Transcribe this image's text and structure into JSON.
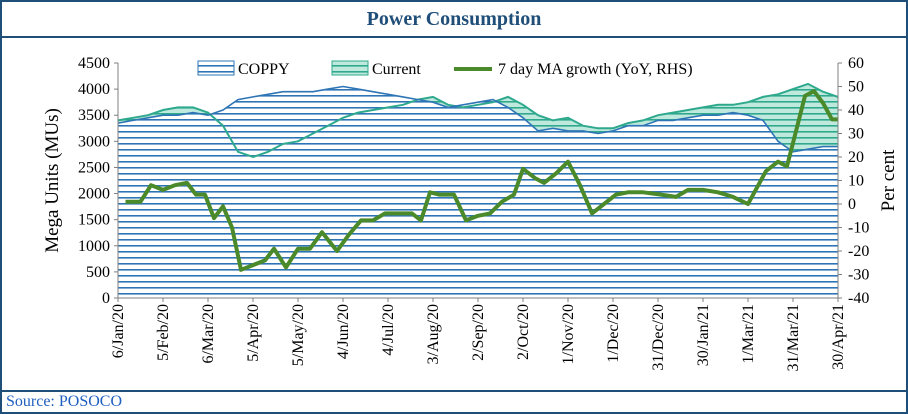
{
  "title": "Power Consumption",
  "source": "Source: POSOCO",
  "chart_data": {
    "type": "area",
    "y_left_label": "Mega Units (MUs)",
    "y_right_label": "Per cent",
    "ylim_left": [
      0,
      4500
    ],
    "ylim_right": [
      -40,
      60
    ],
    "y_left_ticks": [
      "0",
      "500",
      "1000",
      "1500",
      "2000",
      "2500",
      "3000",
      "3500",
      "4000",
      "4500"
    ],
    "y_right_ticks": [
      "-40",
      "-30",
      "-20",
      "-10",
      "0",
      "10",
      "20",
      "30",
      "40",
      "50",
      "60"
    ],
    "x_tick_labels": [
      "6/Jan/20",
      "5/Feb/20",
      "6/Mar/20",
      "5/Apr/20",
      "5/May/20",
      "4/Jun/20",
      "4/Jul/20",
      "3/Aug/20",
      "2/Sep/20",
      "2/Oct/20",
      "1/Nov/20",
      "1/Dec/20",
      "31/Dec/20",
      "30/Jan/21",
      "1/Mar/21",
      "31/Mar/21",
      "30/Apr/21"
    ],
    "x_tick_days": [
      0,
      30,
      60,
      90,
      120,
      150,
      180,
      210,
      240,
      270,
      300,
      330,
      360,
      390,
      420,
      450,
      480
    ],
    "x_range_days": [
      0,
      480
    ],
    "series": [
      {
        "name": "COPPY",
        "axis": "left",
        "color": "#2e75b6",
        "points": [
          [
            0,
            3350
          ],
          [
            10,
            3400
          ],
          [
            20,
            3450
          ],
          [
            30,
            3500
          ],
          [
            40,
            3500
          ],
          [
            50,
            3550
          ],
          [
            60,
            3500
          ],
          [
            70,
            3600
          ],
          [
            80,
            3800
          ],
          [
            90,
            3850
          ],
          [
            100,
            3900
          ],
          [
            110,
            3950
          ],
          [
            120,
            3950
          ],
          [
            130,
            3950
          ],
          [
            140,
            4000
          ],
          [
            150,
            4050
          ],
          [
            160,
            4000
          ],
          [
            170,
            3950
          ],
          [
            180,
            3900
          ],
          [
            190,
            3850
          ],
          [
            200,
            3800
          ],
          [
            210,
            3750
          ],
          [
            220,
            3650
          ],
          [
            230,
            3700
          ],
          [
            240,
            3750
          ],
          [
            250,
            3800
          ],
          [
            260,
            3650
          ],
          [
            270,
            3450
          ],
          [
            280,
            3200
          ],
          [
            290,
            3250
          ],
          [
            300,
            3200
          ],
          [
            310,
            3200
          ],
          [
            320,
            3150
          ],
          [
            330,
            3200
          ],
          [
            340,
            3300
          ],
          [
            350,
            3300
          ],
          [
            360,
            3400
          ],
          [
            370,
            3400
          ],
          [
            380,
            3450
          ],
          [
            390,
            3500
          ],
          [
            400,
            3500
          ],
          [
            410,
            3550
          ],
          [
            420,
            3500
          ],
          [
            430,
            3400
          ],
          [
            440,
            3000
          ],
          [
            450,
            2800
          ],
          [
            460,
            2850
          ],
          [
            470,
            2900
          ],
          [
            480,
            2900
          ]
        ]
      },
      {
        "name": "Current",
        "axis": "left",
        "color": "#2ea98d",
        "points": [
          [
            0,
            3400
          ],
          [
            10,
            3450
          ],
          [
            20,
            3500
          ],
          [
            30,
            3600
          ],
          [
            40,
            3650
          ],
          [
            50,
            3650
          ],
          [
            60,
            3550
          ],
          [
            70,
            3300
          ],
          [
            80,
            2800
          ],
          [
            90,
            2700
          ],
          [
            100,
            2800
          ],
          [
            110,
            2950
          ],
          [
            120,
            3000
          ],
          [
            130,
            3150
          ],
          [
            140,
            3300
          ],
          [
            150,
            3450
          ],
          [
            160,
            3550
          ],
          [
            170,
            3600
          ],
          [
            180,
            3650
          ],
          [
            190,
            3700
          ],
          [
            200,
            3800
          ],
          [
            210,
            3850
          ],
          [
            220,
            3700
          ],
          [
            230,
            3650
          ],
          [
            240,
            3700
          ],
          [
            250,
            3750
          ],
          [
            260,
            3850
          ],
          [
            270,
            3700
          ],
          [
            280,
            3500
          ],
          [
            290,
            3400
          ],
          [
            300,
            3450
          ],
          [
            310,
            3300
          ],
          [
            320,
            3250
          ],
          [
            330,
            3250
          ],
          [
            340,
            3350
          ],
          [
            350,
            3400
          ],
          [
            360,
            3500
          ],
          [
            370,
            3550
          ],
          [
            380,
            3600
          ],
          [
            390,
            3650
          ],
          [
            400,
            3700
          ],
          [
            410,
            3700
          ],
          [
            420,
            3750
          ],
          [
            430,
            3850
          ],
          [
            440,
            3900
          ],
          [
            450,
            4000
          ],
          [
            460,
            4100
          ],
          [
            470,
            3950
          ],
          [
            480,
            3850
          ]
        ]
      },
      {
        "name": "7 day MA growth (YoY, RHS)",
        "axis": "right",
        "color": "#4a8a2a",
        "points": [
          [
            5,
            1
          ],
          [
            15,
            1
          ],
          [
            22,
            8
          ],
          [
            30,
            6
          ],
          [
            38,
            8
          ],
          [
            46,
            9
          ],
          [
            52,
            4
          ],
          [
            58,
            4
          ],
          [
            64,
            -6
          ],
          [
            70,
            -1
          ],
          [
            76,
            -10
          ],
          [
            82,
            -28
          ],
          [
            90,
            -26
          ],
          [
            98,
            -24
          ],
          [
            104,
            -19
          ],
          [
            112,
            -27
          ],
          [
            120,
            -19
          ],
          [
            128,
            -19
          ],
          [
            136,
            -12
          ],
          [
            146,
            -20
          ],
          [
            154,
            -13
          ],
          [
            162,
            -7
          ],
          [
            170,
            -7
          ],
          [
            178,
            -4
          ],
          [
            186,
            -4
          ],
          [
            196,
            -4
          ],
          [
            202,
            -7
          ],
          [
            208,
            5
          ],
          [
            214,
            4
          ],
          [
            224,
            4
          ],
          [
            232,
            -7
          ],
          [
            240,
            -5
          ],
          [
            248,
            -4
          ],
          [
            256,
            1
          ],
          [
            264,
            4
          ],
          [
            270,
            15
          ],
          [
            278,
            11
          ],
          [
            284,
            9
          ],
          [
            292,
            13
          ],
          [
            300,
            18
          ],
          [
            308,
            8
          ],
          [
            316,
            -4
          ],
          [
            324,
            0
          ],
          [
            332,
            4
          ],
          [
            340,
            5
          ],
          [
            350,
            5
          ],
          [
            362,
            4
          ],
          [
            372,
            3
          ],
          [
            380,
            6
          ],
          [
            390,
            6
          ],
          [
            400,
            5
          ],
          [
            410,
            3
          ],
          [
            420,
            0
          ],
          [
            426,
            7
          ],
          [
            432,
            14
          ],
          [
            440,
            18
          ],
          [
            446,
            16
          ],
          [
            454,
            36
          ],
          [
            458,
            46
          ],
          [
            464,
            48
          ],
          [
            470,
            43
          ],
          [
            476,
            36
          ],
          [
            480,
            36
          ]
        ]
      }
    ],
    "legend": [
      "COPPY",
      "Current",
      "7 day MA growth (YoY, RHS)"
    ],
    "legend_placement": "top",
    "grid": false
  }
}
